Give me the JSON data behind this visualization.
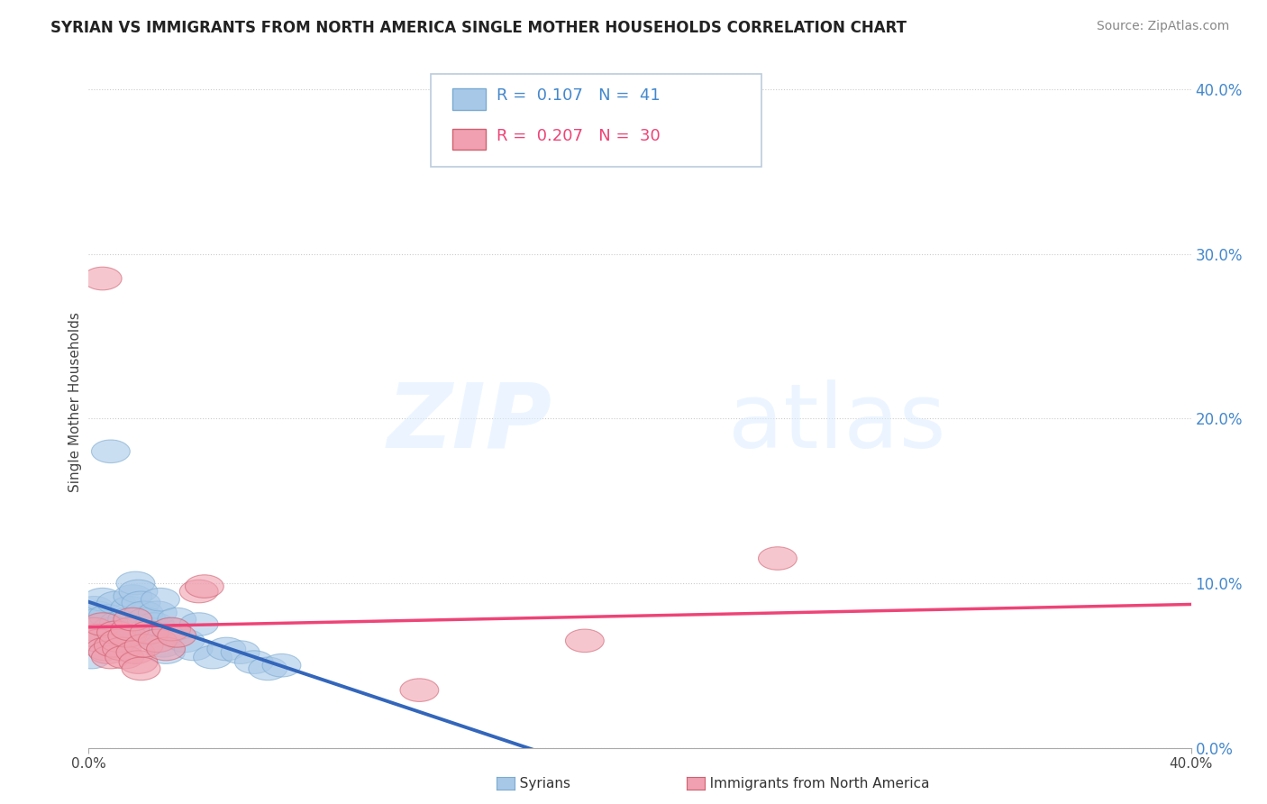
{
  "title": "SYRIAN VS IMMIGRANTS FROM NORTH AMERICA SINGLE MOTHER HOUSEHOLDS CORRELATION CHART",
  "source": "Source: ZipAtlas.com",
  "ylabel": "Single Mother Households",
  "xlim": [
    0.0,
    0.4
  ],
  "ylim": [
    0.0,
    0.42
  ],
  "yticks": [
    0.0,
    0.1,
    0.2,
    0.3,
    0.4
  ],
  "ytick_labels": [
    "0.0%",
    "10.0%",
    "20.0%",
    "30.0%",
    "40.0%"
  ],
  "legend": {
    "syrian_r": "0.107",
    "syrian_n": "41",
    "northam_r": "0.207",
    "northam_n": "30"
  },
  "blue_color": "#A8C8E8",
  "blue_edge_color": "#7AAAD0",
  "pink_color": "#F0A0B0",
  "pink_edge_color": "#D06070",
  "blue_line_color": "#3366BB",
  "pink_line_color": "#EE4477",
  "blue_dash_color": "#99BBDD",
  "background_color": "#FFFFFF",
  "grid_color": "#CCCCCC",
  "syrian_points": [
    [
      0.002,
      0.085
    ],
    [
      0.003,
      0.082
    ],
    [
      0.004,
      0.078
    ],
    [
      0.005,
      0.09
    ],
    [
      0.006,
      0.075
    ],
    [
      0.007,
      0.08
    ],
    [
      0.008,
      0.072
    ],
    [
      0.009,
      0.068
    ],
    [
      0.01,
      0.088
    ],
    [
      0.011,
      0.076
    ],
    [
      0.012,
      0.07
    ],
    [
      0.013,
      0.065
    ],
    [
      0.014,
      0.078
    ],
    [
      0.015,
      0.085
    ],
    [
      0.016,
      0.092
    ],
    [
      0.017,
      0.1
    ],
    [
      0.018,
      0.095
    ],
    [
      0.019,
      0.088
    ],
    [
      0.02,
      0.082
    ],
    [
      0.021,
      0.078
    ],
    [
      0.022,
      0.072
    ],
    [
      0.023,
      0.068
    ],
    [
      0.024,
      0.075
    ],
    [
      0.025,
      0.082
    ],
    [
      0.026,
      0.09
    ],
    [
      0.027,
      0.062
    ],
    [
      0.028,
      0.058
    ],
    [
      0.03,
      0.072
    ],
    [
      0.032,
      0.078
    ],
    [
      0.035,
      0.065
    ],
    [
      0.038,
      0.06
    ],
    [
      0.04,
      0.075
    ],
    [
      0.045,
      0.055
    ],
    [
      0.05,
      0.06
    ],
    [
      0.055,
      0.058
    ],
    [
      0.06,
      0.052
    ],
    [
      0.065,
      0.048
    ],
    [
      0.001,
      0.055
    ],
    [
      0.008,
      0.18
    ],
    [
      0.003,
      0.068
    ],
    [
      0.07,
      0.05
    ]
  ],
  "northam_points": [
    [
      0.002,
      0.072
    ],
    [
      0.003,
      0.068
    ],
    [
      0.004,
      0.065
    ],
    [
      0.005,
      0.075
    ],
    [
      0.006,
      0.06
    ],
    [
      0.007,
      0.058
    ],
    [
      0.008,
      0.055
    ],
    [
      0.009,
      0.062
    ],
    [
      0.01,
      0.07
    ],
    [
      0.011,
      0.065
    ],
    [
      0.012,
      0.06
    ],
    [
      0.013,
      0.055
    ],
    [
      0.014,
      0.068
    ],
    [
      0.015,
      0.072
    ],
    [
      0.016,
      0.078
    ],
    [
      0.017,
      0.058
    ],
    [
      0.018,
      0.052
    ],
    [
      0.019,
      0.048
    ],
    [
      0.02,
      0.062
    ],
    [
      0.022,
      0.07
    ],
    [
      0.025,
      0.065
    ],
    [
      0.028,
      0.06
    ],
    [
      0.03,
      0.072
    ],
    [
      0.032,
      0.068
    ],
    [
      0.04,
      0.095
    ],
    [
      0.042,
      0.098
    ],
    [
      0.005,
      0.285
    ],
    [
      0.25,
      0.115
    ],
    [
      0.18,
      0.065
    ],
    [
      0.12,
      0.035
    ]
  ],
  "watermark_zip": "ZIP",
  "watermark_atlas": "atlas"
}
